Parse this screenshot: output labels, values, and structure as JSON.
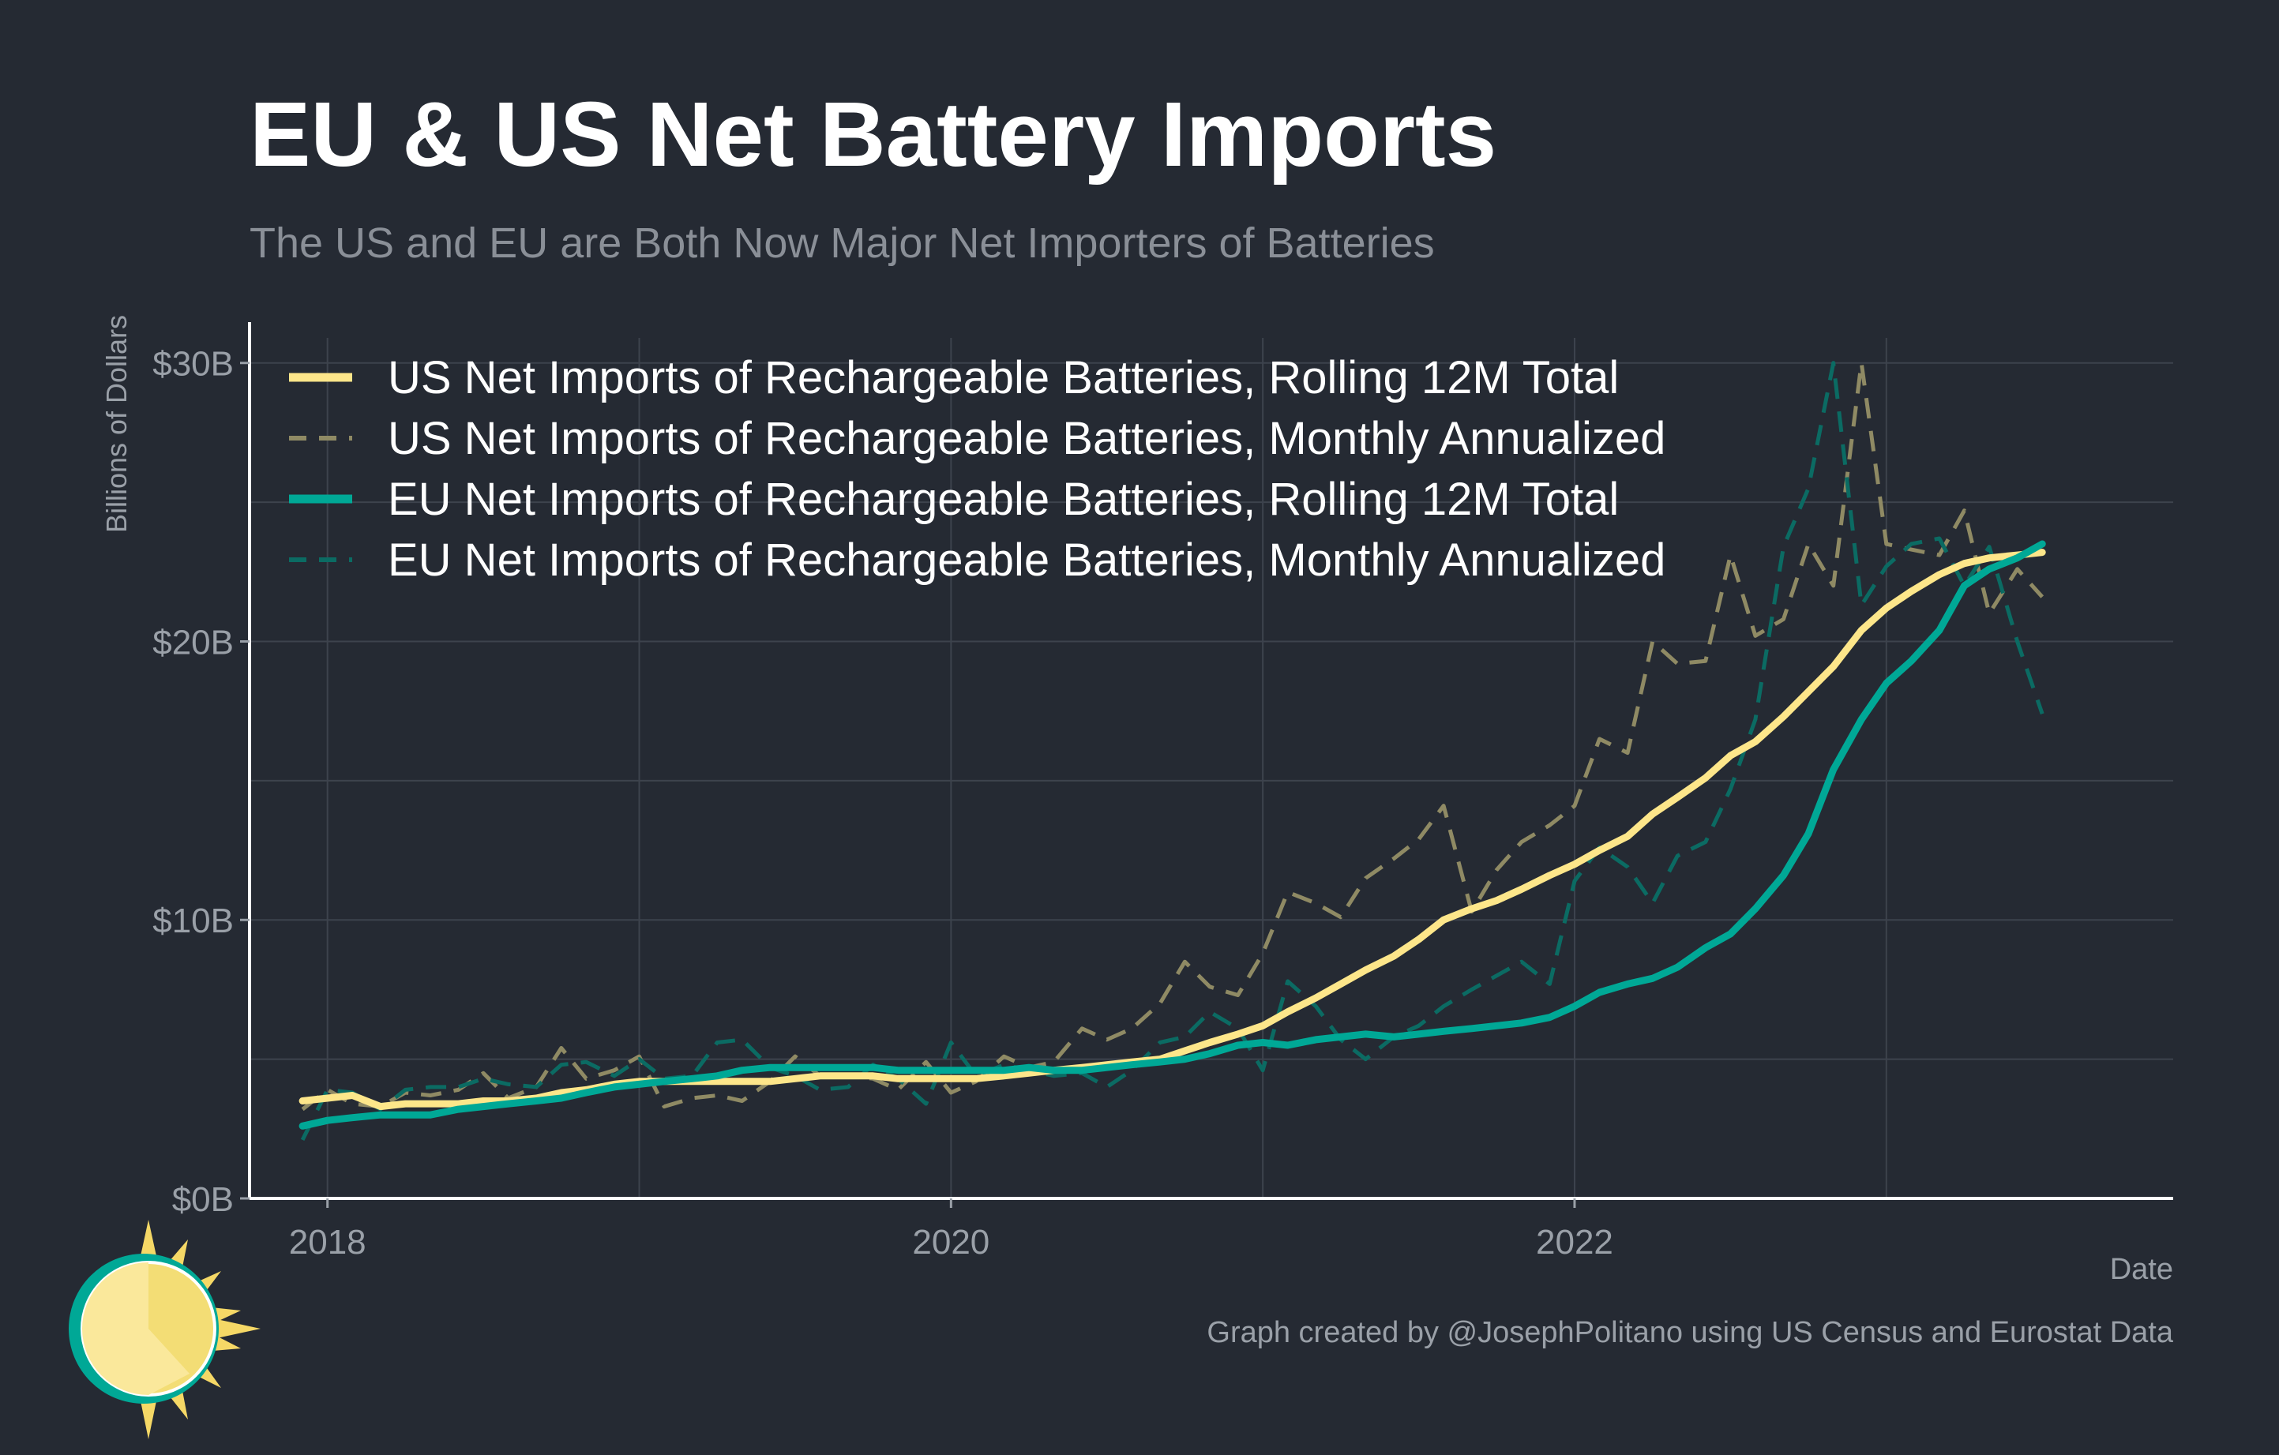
{
  "title": "EU & US Net Battery Imports",
  "subtitle": "The US and EU are Both Now Major Net Importers of Batteries",
  "caption": "Graph created by @JosephPolitano using US Census and Eurostat Data",
  "logo_icon": "sun-icon",
  "colors": {
    "background": "#252a33",
    "text": "#ffffff",
    "muted_text": "#9aa0a8",
    "grid": "#3d434d",
    "axis": "#ffffff",
    "us": "#fde68a",
    "us_dashed": "#8f8a64",
    "eu": "#00a896",
    "eu_dashed": "#0b6b63"
  },
  "chart_data": {
    "type": "line",
    "xlabel": "Date",
    "ylabel": "Billions of Dollars",
    "xlim": [
      2017.75,
      2023.92
    ],
    "ylim": [
      0,
      30
    ],
    "x_ticks": [
      {
        "value": 2018,
        "label": "2018"
      },
      {
        "value": 2020,
        "label": "2020"
      },
      {
        "value": 2022,
        "label": "2022"
      }
    ],
    "y_ticks": [
      {
        "value": 0,
        "label": "$0B"
      },
      {
        "value": 10,
        "label": "$10B"
      },
      {
        "value": 20,
        "label": "$20B"
      },
      {
        "value": 30,
        "label": "$30B"
      }
    ],
    "grid": true,
    "legend_position": "top-left",
    "series": [
      {
        "name": "US Net Imports of Rechargeable Batteries, Rolling 12M Total",
        "color": "#fde68a",
        "dashed": false,
        "x": [
          2017.92,
          2018.0,
          2018.08,
          2018.17,
          2018.25,
          2018.33,
          2018.42,
          2018.5,
          2018.58,
          2018.67,
          2018.75,
          2018.83,
          2018.92,
          2019.0,
          2019.08,
          2019.17,
          2019.25,
          2019.33,
          2019.42,
          2019.5,
          2019.58,
          2019.67,
          2019.75,
          2019.83,
          2019.92,
          2020.0,
          2020.08,
          2020.17,
          2020.25,
          2020.33,
          2020.42,
          2020.5,
          2020.58,
          2020.67,
          2020.75,
          2020.83,
          2020.92,
          2021.0,
          2021.08,
          2021.17,
          2021.25,
          2021.33,
          2021.42,
          2021.5,
          2021.58,
          2021.67,
          2021.75,
          2021.83,
          2021.92,
          2022.0,
          2022.08,
          2022.17,
          2022.25,
          2022.33,
          2022.42,
          2022.5,
          2022.58,
          2022.67,
          2022.75,
          2022.83,
          2022.92,
          2023.0,
          2023.08,
          2023.17,
          2023.25,
          2023.33,
          2023.42,
          2023.5
        ],
        "values": [
          3.5,
          3.6,
          3.7,
          3.3,
          3.4,
          3.4,
          3.4,
          3.5,
          3.5,
          3.6,
          3.8,
          3.9,
          4.1,
          4.2,
          4.2,
          4.2,
          4.2,
          4.2,
          4.2,
          4.3,
          4.4,
          4.4,
          4.4,
          4.3,
          4.3,
          4.3,
          4.3,
          4.4,
          4.5,
          4.6,
          4.7,
          4.8,
          4.9,
          5.0,
          5.3,
          5.6,
          5.9,
          6.2,
          6.7,
          7.2,
          7.7,
          8.2,
          8.7,
          9.3,
          10.0,
          10.4,
          10.7,
          11.1,
          11.6,
          12.0,
          12.5,
          13.0,
          13.8,
          14.4,
          15.1,
          15.9,
          16.4,
          17.3,
          18.2,
          19.1,
          20.4,
          21.2,
          21.8,
          22.4,
          22.8,
          23.0,
          23.1,
          23.2
        ]
      },
      {
        "name": "US Net Imports of Rechargeable Batteries, Monthly Annualized",
        "color": "#8f8a64",
        "dashed": true,
        "x": [
          2017.92,
          2018.0,
          2018.08,
          2018.17,
          2018.25,
          2018.33,
          2018.42,
          2018.5,
          2018.58,
          2018.67,
          2018.75,
          2018.83,
          2018.92,
          2019.0,
          2019.08,
          2019.17,
          2019.25,
          2019.33,
          2019.42,
          2019.5,
          2019.58,
          2019.67,
          2019.75,
          2019.83,
          2019.92,
          2020.0,
          2020.08,
          2020.17,
          2020.25,
          2020.33,
          2020.42,
          2020.5,
          2020.58,
          2020.67,
          2020.75,
          2020.83,
          2020.92,
          2021.0,
          2021.08,
          2021.17,
          2021.25,
          2021.33,
          2021.42,
          2021.5,
          2021.58,
          2021.67,
          2021.75,
          2021.83,
          2021.92,
          2022.0,
          2022.08,
          2022.17,
          2022.25,
          2022.33,
          2022.42,
          2022.5,
          2022.58,
          2022.67,
          2022.75,
          2022.83,
          2022.92,
          2023.0,
          2023.08,
          2023.17,
          2023.25,
          2023.33,
          2023.42,
          2023.5
        ],
        "values": [
          3.2,
          3.9,
          3.4,
          3.3,
          3.8,
          3.7,
          3.9,
          4.5,
          3.6,
          4.0,
          5.4,
          4.3,
          4.6,
          5.1,
          3.3,
          3.6,
          3.7,
          3.5,
          4.2,
          5.1,
          4.4,
          4.4,
          4.3,
          3.9,
          4.9,
          3.8,
          4.2,
          5.1,
          4.7,
          4.9,
          6.1,
          5.7,
          6.1,
          7.0,
          8.5,
          7.6,
          7.3,
          8.8,
          11.0,
          10.6,
          10.1,
          11.5,
          12.2,
          12.9,
          14.1,
          10.3,
          11.8,
          12.8,
          13.4,
          14.1,
          16.5,
          16.0,
          20.0,
          19.2,
          19.3,
          23.1,
          20.2,
          20.8,
          23.5,
          22.0,
          30.0,
          23.5,
          23.3,
          23.1,
          24.7,
          21.0,
          22.6,
          21.6
        ]
      },
      {
        "name": "EU Net Imports of Rechargeable Batteries, Rolling 12M Total",
        "color": "#00a896",
        "dashed": false,
        "x": [
          2017.92,
          2018.0,
          2018.08,
          2018.17,
          2018.25,
          2018.33,
          2018.42,
          2018.5,
          2018.58,
          2018.67,
          2018.75,
          2018.83,
          2018.92,
          2019.0,
          2019.08,
          2019.17,
          2019.25,
          2019.33,
          2019.42,
          2019.5,
          2019.58,
          2019.67,
          2019.75,
          2019.83,
          2019.92,
          2020.0,
          2020.08,
          2020.17,
          2020.25,
          2020.33,
          2020.42,
          2020.5,
          2020.58,
          2020.67,
          2020.75,
          2020.83,
          2020.92,
          2021.0,
          2021.08,
          2021.17,
          2021.25,
          2021.33,
          2021.42,
          2021.5,
          2021.58,
          2021.67,
          2021.75,
          2021.83,
          2021.92,
          2022.0,
          2022.08,
          2022.17,
          2022.25,
          2022.33,
          2022.42,
          2022.5,
          2022.58,
          2022.67,
          2022.75,
          2022.83,
          2022.92,
          2023.0,
          2023.08,
          2023.17,
          2023.25,
          2023.33,
          2023.42,
          2023.5
        ],
        "values": [
          2.6,
          2.8,
          2.9,
          3.0,
          3.0,
          3.0,
          3.2,
          3.3,
          3.4,
          3.5,
          3.6,
          3.8,
          4.0,
          4.1,
          4.2,
          4.3,
          4.4,
          4.6,
          4.7,
          4.7,
          4.7,
          4.7,
          4.7,
          4.6,
          4.6,
          4.6,
          4.6,
          4.6,
          4.7,
          4.6,
          4.6,
          4.7,
          4.8,
          4.9,
          5.0,
          5.2,
          5.5,
          5.6,
          5.5,
          5.7,
          5.8,
          5.9,
          5.8,
          5.9,
          6.0,
          6.1,
          6.2,
          6.3,
          6.5,
          6.9,
          7.4,
          7.7,
          7.9,
          8.3,
          9.0,
          9.5,
          10.4,
          11.6,
          13.1,
          15.4,
          17.2,
          18.5,
          19.3,
          20.4,
          22.0,
          22.6,
          23.0,
          23.5
        ]
      },
      {
        "name": "EU Net Imports of Rechargeable Batteries, Monthly Annualized",
        "color": "#0b6b63",
        "dashed": true,
        "x": [
          2017.92,
          2018.0,
          2018.08,
          2018.17,
          2018.25,
          2018.33,
          2018.42,
          2018.5,
          2018.58,
          2018.67,
          2018.75,
          2018.83,
          2018.92,
          2019.0,
          2019.08,
          2019.17,
          2019.25,
          2019.33,
          2019.42,
          2019.5,
          2019.58,
          2019.67,
          2019.75,
          2019.83,
          2019.92,
          2020.0,
          2020.08,
          2020.17,
          2020.25,
          2020.33,
          2020.42,
          2020.5,
          2020.58,
          2020.67,
          2020.75,
          2020.83,
          2020.92,
          2021.0,
          2021.08,
          2021.17,
          2021.25,
          2021.33,
          2021.42,
          2021.5,
          2021.58,
          2021.67,
          2021.75,
          2021.83,
          2021.92,
          2022.0,
          2022.08,
          2022.17,
          2022.25,
          2022.33,
          2022.42,
          2022.5,
          2022.58,
          2022.67,
          2022.75,
          2022.83,
          2022.92,
          2023.0,
          2023.08,
          2023.17,
          2023.25,
          2023.33,
          2023.42,
          2023.5
        ],
        "values": [
          2.1,
          3.9,
          3.8,
          3.2,
          3.9,
          4.0,
          4.0,
          4.3,
          4.1,
          4.0,
          4.8,
          4.9,
          4.4,
          5.0,
          4.3,
          4.4,
          5.6,
          5.7,
          4.7,
          4.4,
          3.9,
          4.0,
          4.8,
          4.3,
          3.4,
          5.6,
          4.4,
          4.8,
          4.6,
          4.4,
          4.5,
          4.0,
          4.6,
          5.6,
          5.8,
          6.7,
          6.1,
          4.6,
          7.8,
          6.9,
          5.7,
          5.0,
          5.8,
          6.2,
          6.9,
          7.5,
          8.0,
          8.5,
          7.7,
          11.4,
          12.6,
          11.9,
          10.6,
          12.3,
          12.8,
          14.7,
          17.2,
          23.4,
          25.5,
          30.0,
          21.3,
          22.7,
          23.5,
          23.7,
          22.0,
          23.4,
          20.0,
          17.4
        ]
      }
    ]
  }
}
